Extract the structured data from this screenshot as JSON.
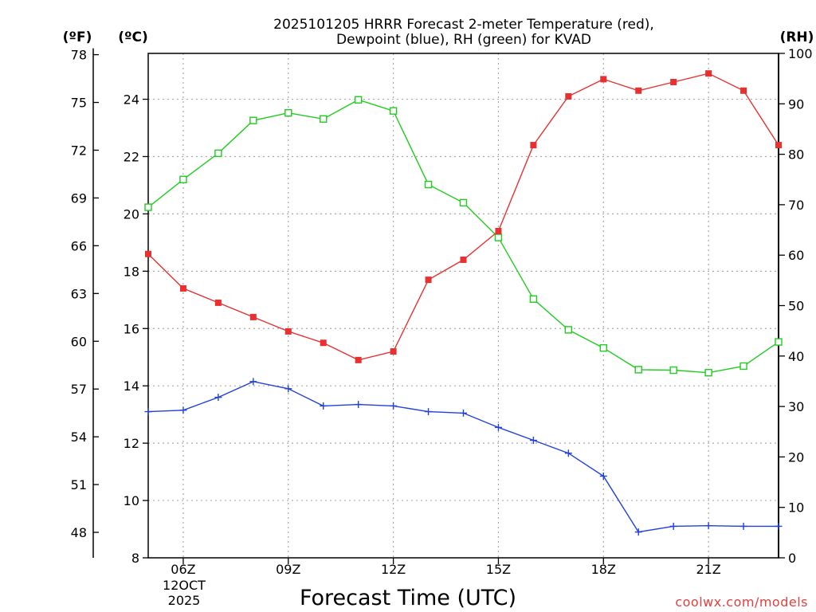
{
  "chart_data": {
    "type": "line",
    "title": "2025101205 HRRR Forecast 2-meter Temperature (red),",
    "subtitle": "Dewpoint (blue), RH (green) for KVAD",
    "xlabel": "Forecast Time (UTC)",
    "credit": "coolwx.com/models",
    "units": {
      "fahrenheit": "(ºF)",
      "celsius": "(ºC)",
      "rh": "(RH)"
    },
    "date_label": {
      "line1": "12OCT",
      "line2": "2025"
    },
    "x": [
      5,
      6,
      7,
      8,
      9,
      10,
      11,
      12,
      13,
      14,
      15,
      16,
      17,
      18,
      19,
      20,
      21,
      22,
      23
    ],
    "xlim": [
      5,
      23
    ],
    "xticks": [
      {
        "value": 6,
        "label": "06Z"
      },
      {
        "value": 9,
        "label": "09Z"
      },
      {
        "value": 12,
        "label": "12Z"
      },
      {
        "value": 15,
        "label": "15Z"
      },
      {
        "value": 18,
        "label": "18Z"
      },
      {
        "value": 21,
        "label": "21Z"
      }
    ],
    "ylim_c": [
      8,
      25.6
    ],
    "celsius_ticks": [
      8,
      10,
      12,
      14,
      16,
      18,
      20,
      22,
      24
    ],
    "fahrenheit_ticks": [
      48,
      51,
      54,
      57,
      60,
      63,
      66,
      69,
      72,
      75,
      78
    ],
    "rh_ticks": [
      0,
      10,
      20,
      30,
      40,
      50,
      60,
      70,
      80,
      90,
      100
    ],
    "ylim_rh": [
      0,
      100
    ],
    "series": [
      {
        "name": "Temperature",
        "unit": "C",
        "color": "#e83030",
        "marker": "filled-square",
        "values": [
          18.6,
          17.4,
          16.9,
          16.4,
          15.9,
          15.5,
          14.9,
          15.2,
          17.7,
          18.4,
          19.4,
          22.4,
          24.1,
          24.7,
          24.3,
          24.6,
          24.9,
          24.3,
          22.4
        ]
      },
      {
        "name": "Dewpoint",
        "unit": "C",
        "color": "#2040e0",
        "marker": "plus",
        "values": [
          13.1,
          13.15,
          13.6,
          14.15,
          13.9,
          13.3,
          13.35,
          13.3,
          13.1,
          13.05,
          12.55,
          12.1,
          11.65,
          10.85,
          8.9,
          9.1,
          9.12,
          9.1,
          9.1
        ]
      },
      {
        "name": "RH",
        "unit": "%",
        "color": "#20cc20",
        "marker": "open-square",
        "values": [
          69.5,
          75,
          80.2,
          86.7,
          88.2,
          87,
          90.8,
          88.6,
          74,
          70.4,
          63.5,
          51.3,
          45.2,
          41.6,
          37.3,
          37.2,
          36.7,
          38,
          42.8
        ]
      }
    ]
  }
}
